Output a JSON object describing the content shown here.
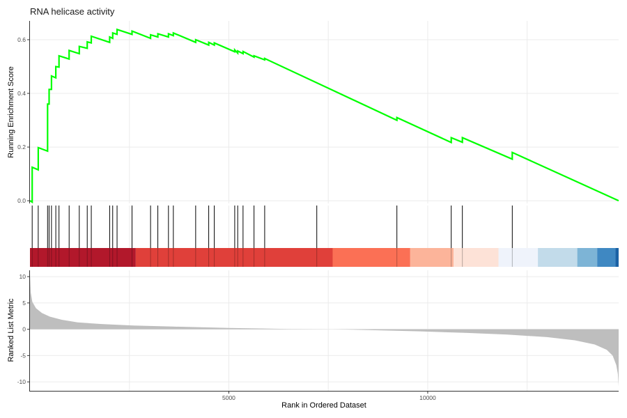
{
  "chart_data": {
    "type": "line",
    "title": "RNA helicase activity",
    "xlabel": "Rank in Ordered Dataset",
    "xlim": [
      0,
      14800
    ],
    "x_ticks": [
      5000,
      10000
    ],
    "x_tick_labels": [
      "5000",
      "10000"
    ],
    "colors": {
      "es_line": "#00ff00",
      "metric_fill": "#bebebe",
      "hit": "#000000",
      "grid": "#ebebeb"
    },
    "panels": {
      "enrichment": {
        "ylabel": "Running Enrichment Score",
        "ylim": [
          -0.01,
          0.67
        ],
        "y_ticks": [
          0.0,
          0.2,
          0.4,
          0.6
        ],
        "y_tick_labels": [
          "0.0",
          "0.2",
          "0.4",
          "0.6"
        ],
        "running_es": [
          [
            0,
            0.0
          ],
          [
            56,
            -0.005
          ],
          [
            56,
            0.125
          ],
          [
            208,
            0.115
          ],
          [
            208,
            0.198
          ],
          [
            443,
            0.185
          ],
          [
            443,
            0.36
          ],
          [
            481,
            0.36
          ],
          [
            481,
            0.415
          ],
          [
            541,
            0.415
          ],
          [
            541,
            0.465
          ],
          [
            650,
            0.458
          ],
          [
            650,
            0.5
          ],
          [
            730,
            0.498
          ],
          [
            730,
            0.54
          ],
          [
            985,
            0.528
          ],
          [
            985,
            0.56
          ],
          [
            1240,
            0.548
          ],
          [
            1240,
            0.575
          ],
          [
            1440,
            0.568
          ],
          [
            1440,
            0.592
          ],
          [
            1542,
            0.588
          ],
          [
            1542,
            0.613
          ],
          [
            2004,
            0.59
          ],
          [
            2004,
            0.61
          ],
          [
            2080,
            0.605
          ],
          [
            2080,
            0.625
          ],
          [
            2190,
            0.62
          ],
          [
            2190,
            0.638
          ],
          [
            2566,
            0.62
          ],
          [
            2566,
            0.632
          ],
          [
            3032,
            0.605
          ],
          [
            3032,
            0.618
          ],
          [
            3215,
            0.61
          ],
          [
            3215,
            0.622
          ],
          [
            3482,
            0.61
          ],
          [
            3482,
            0.622
          ],
          [
            3605,
            0.615
          ],
          [
            3605,
            0.625
          ],
          [
            4166,
            0.59
          ],
          [
            4166,
            0.6
          ],
          [
            4494,
            0.58
          ],
          [
            4494,
            0.59
          ],
          [
            4634,
            0.58
          ],
          [
            4634,
            0.588
          ],
          [
            5148,
            0.555
          ],
          [
            5148,
            0.562
          ],
          [
            5223,
            0.55
          ],
          [
            5223,
            0.558
          ],
          [
            5357,
            0.548
          ],
          [
            5357,
            0.556
          ],
          [
            5633,
            0.535
          ],
          [
            5633,
            0.54
          ],
          [
            5901,
            0.525
          ],
          [
            5901,
            0.53
          ],
          [
            9225,
            0.3
          ],
          [
            9225,
            0.31
          ],
          [
            10591,
            0.217
          ],
          [
            10591,
            0.235
          ],
          [
            10871,
            0.218
          ],
          [
            10871,
            0.235
          ],
          [
            12126,
            0.155
          ],
          [
            12126,
            0.18
          ],
          [
            14800,
            0.0
          ]
        ]
      },
      "hits": {
        "positions": [
          56,
          208,
          443,
          481,
          541,
          650,
          730,
          985,
          1240,
          1440,
          1542,
          2004,
          2080,
          2190,
          2566,
          3032,
          3215,
          3482,
          3605,
          4166,
          4494,
          4634,
          5148,
          5223,
          5357,
          5633,
          5901,
          7211,
          9225,
          10591,
          10871,
          12126
        ],
        "color_band": [
          {
            "from": 0,
            "to": 2660,
            "color": "#b2182b"
          },
          {
            "from": 2660,
            "to": 7610,
            "color": "#e0403a"
          },
          {
            "from": 7610,
            "to": 9560,
            "color": "#fb7055"
          },
          {
            "from": 9560,
            "to": 10650,
            "color": "#fcb49a"
          },
          {
            "from": 10650,
            "to": 11780,
            "color": "#fde2d7"
          },
          {
            "from": 11780,
            "to": 12770,
            "color": "#eff3fb"
          },
          {
            "from": 12770,
            "to": 13760,
            "color": "#c2dbea"
          },
          {
            "from": 13760,
            "to": 14260,
            "color": "#7db4d6"
          },
          {
            "from": 14260,
            "to": 14720,
            "color": "#3f88c2"
          },
          {
            "from": 14720,
            "to": 14800,
            "color": "#1b62a5"
          }
        ]
      },
      "ranked_metric": {
        "ylabel": "Ranked List Metric",
        "ylim": [
          -11.7,
          11.2
        ],
        "y_ticks": [
          -10,
          -5,
          0,
          5,
          10
        ],
        "y_tick_labels": [
          "-10",
          "-5",
          "0",
          "5",
          "10"
        ],
        "profile": [
          [
            0,
            10.5
          ],
          [
            20,
            7.0
          ],
          [
            60,
            5.2
          ],
          [
            150,
            4.0
          ],
          [
            300,
            3.1
          ],
          [
            500,
            2.4
          ],
          [
            800,
            1.8
          ],
          [
            1200,
            1.3
          ],
          [
            1800,
            1.0
          ],
          [
            2600,
            0.7
          ],
          [
            3600,
            0.5
          ],
          [
            5000,
            0.25
          ],
          [
            6500,
            0.05
          ],
          [
            7600,
            0.0
          ],
          [
            8500,
            -0.15
          ],
          [
            9800,
            -0.4
          ],
          [
            11000,
            -0.7
          ],
          [
            12000,
            -1.0
          ],
          [
            13000,
            -1.5
          ],
          [
            13700,
            -2.1
          ],
          [
            14200,
            -2.9
          ],
          [
            14500,
            -3.9
          ],
          [
            14650,
            -5.0
          ],
          [
            14740,
            -6.8
          ],
          [
            14780,
            -8.5
          ],
          [
            14800,
            -10.8
          ]
        ]
      }
    }
  }
}
